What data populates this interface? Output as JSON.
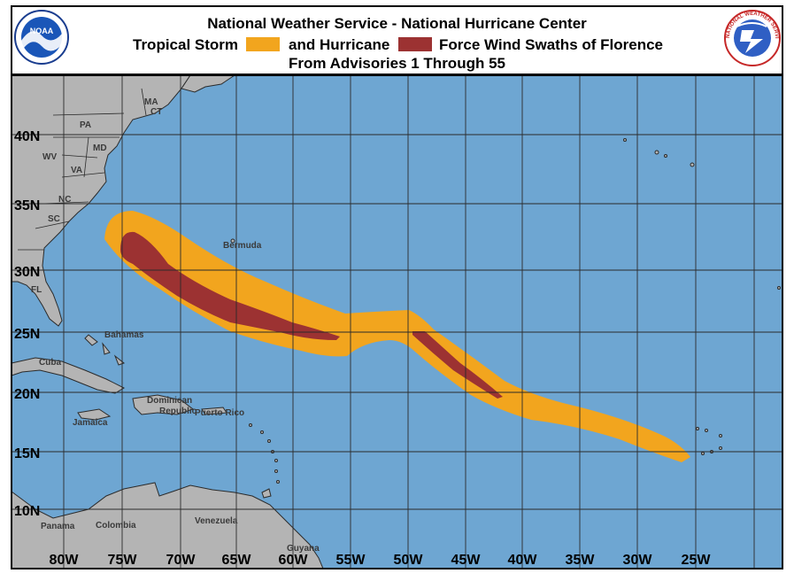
{
  "header": {
    "title_line1": "National Weather Service - National Hurricane Center",
    "legend_ts_label": "Tropical Storm",
    "legend_hu_label": "and Hurricane",
    "legend_suffix": "Force Wind Swaths of Florence",
    "title_line3": "From Advisories 1 Through 55",
    "left_logo_text": "NOAA",
    "right_logo_text": "NATIONAL WEATHER SERVICE"
  },
  "colors": {
    "ocean": "#6ea6d2",
    "land": "#b4b4b4",
    "tropical_storm": "#f2a51e",
    "hurricane": "#9c3232",
    "grid": "#2b2b2b"
  },
  "map": {
    "lon_labels": [
      "80W",
      "75W",
      "70W",
      "65W",
      "60W",
      "55W",
      "50W",
      "45W",
      "40W",
      "35W",
      "30W",
      "25W"
    ],
    "lat_labels": [
      "40N",
      "35N",
      "30N",
      "25N",
      "20N",
      "15N",
      "10N"
    ],
    "place_labels": [
      {
        "id": "pa",
        "text": "PA"
      },
      {
        "id": "ma",
        "text": "MA"
      },
      {
        "id": "ct",
        "text": "CT"
      },
      {
        "id": "md",
        "text": "MD"
      },
      {
        "id": "wv",
        "text": "WV"
      },
      {
        "id": "va",
        "text": "VA"
      },
      {
        "id": "nc",
        "text": "NC"
      },
      {
        "id": "sc",
        "text": "SC"
      },
      {
        "id": "fl",
        "text": "FL"
      },
      {
        "id": "bermuda",
        "text": "Bermuda"
      },
      {
        "id": "bahamas",
        "text": "Bahamas"
      },
      {
        "id": "cuba",
        "text": "Cuba"
      },
      {
        "id": "jamaica",
        "text": "Jamaica"
      },
      {
        "id": "dominican",
        "text": "Dominican"
      },
      {
        "id": "republic",
        "text": "Republic"
      },
      {
        "id": "puerto-rico",
        "text": "Puerto Rico"
      },
      {
        "id": "panama",
        "text": "Panama"
      },
      {
        "id": "colombia",
        "text": "Colombia"
      },
      {
        "id": "venezuela",
        "text": "Venezuela"
      },
      {
        "id": "guyana",
        "text": "Guyana"
      }
    ]
  }
}
